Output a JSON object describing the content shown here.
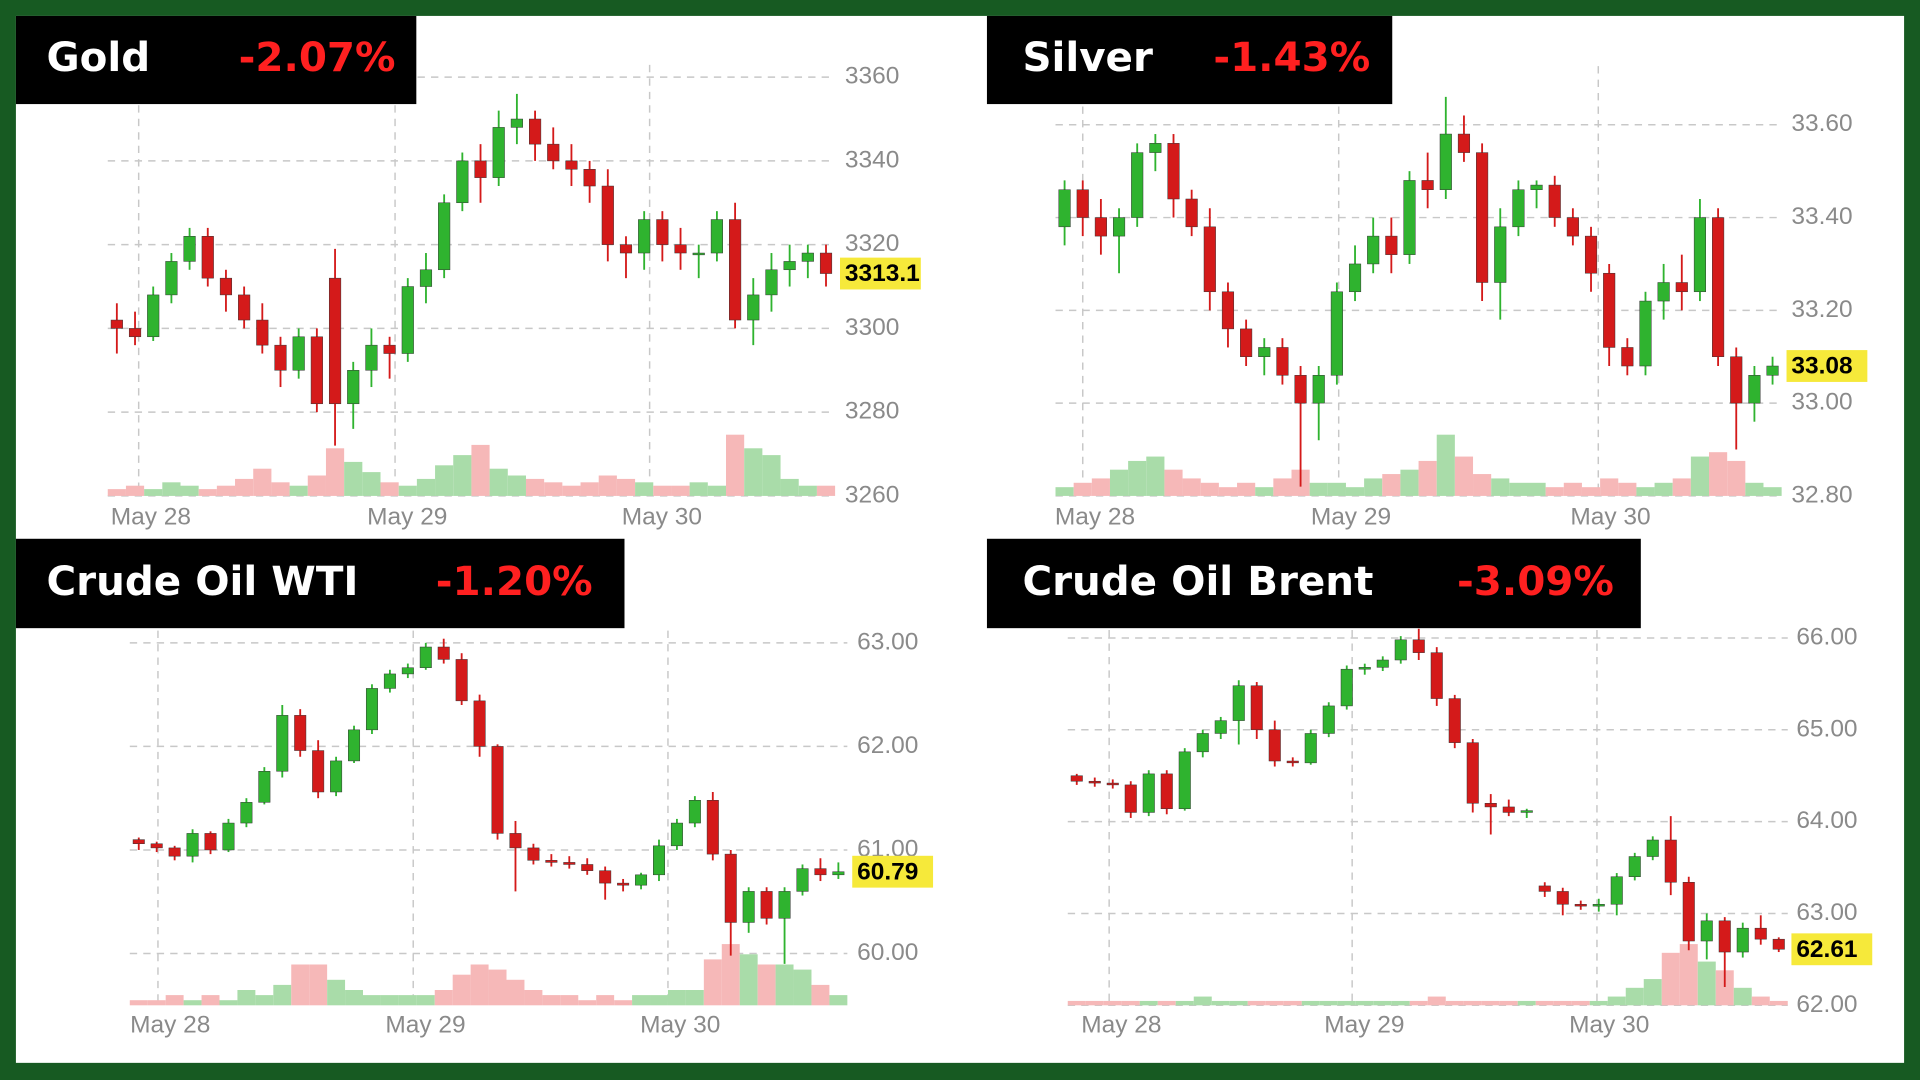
{
  "chart_data": [
    {
      "type": "candlestick",
      "title": "Gold",
      "change": "-2.07%",
      "xlim": [
        0,
        40
      ],
      "xticks": [
        {
          "value": 1.7,
          "label": "May 28"
        },
        {
          "value": 15.8,
          "label": "May 29"
        },
        {
          "value": 29.8,
          "label": "May 30"
        }
      ],
      "ylim": [
        3260,
        3360
      ],
      "yticks": [
        3260,
        3280,
        3300,
        3320,
        3340,
        3360
      ],
      "open": [
        3302,
        3300,
        3298,
        3308,
        3316,
        3322,
        3312,
        3308,
        3302,
        3296,
        3290,
        3298,
        3312,
        3282,
        3290,
        3296,
        3294,
        3310,
        3314,
        3330,
        3340,
        3336,
        3348,
        3350,
        3344,
        3340,
        3338,
        3334,
        3320,
        3318,
        3326,
        3320,
        3318,
        3318,
        3326,
        3302,
        3308,
        3314,
        3316,
        3318
      ],
      "high": [
        3306,
        3304,
        3310,
        3318,
        3324,
        3324,
        3314,
        3310,
        3306,
        3298,
        3300,
        3300,
        3319,
        3292,
        3300,
        3298,
        3312,
        3318,
        3332,
        3342,
        3344,
        3352,
        3356,
        3352,
        3348,
        3344,
        3340,
        3338,
        3322,
        3328,
        3328,
        3324,
        3320,
        3328,
        3330,
        3312,
        3318,
        3320,
        3320,
        3320
      ],
      "low": [
        3294,
        3296,
        3297,
        3306,
        3314,
        3310,
        3304,
        3300,
        3294,
        3286,
        3288,
        3280,
        3272,
        3276,
        3286,
        3288,
        3292,
        3306,
        3312,
        3328,
        3330,
        3334,
        3344,
        3340,
        3338,
        3334,
        3330,
        3316,
        3312,
        3314,
        3316,
        3314,
        3312,
        3316,
        3300,
        3296,
        3304,
        3310,
        3312,
        3310
      ],
      "close": [
        3300,
        3298,
        3308,
        3316,
        3322,
        3312,
        3308,
        3302,
        3296,
        3290,
        3298,
        3282,
        3282,
        3290,
        3296,
        3294,
        3310,
        3314,
        3330,
        3340,
        3336,
        3348,
        3350,
        3344,
        3340,
        3338,
        3334,
        3320,
        3318,
        3326,
        3320,
        3318,
        3318,
        3326,
        3302,
        3308,
        3314,
        3316,
        3318,
        3313.1
      ],
      "volume": [
        2,
        3,
        2,
        4,
        3,
        2,
        3,
        5,
        8,
        4,
        3,
        6,
        14,
        10,
        7,
        4,
        3,
        5,
        9,
        12,
        15,
        8,
        6,
        5,
        4,
        3,
        4,
        6,
        5,
        4,
        3,
        3,
        4,
        3,
        18,
        14,
        12,
        5,
        3,
        3
      ],
      "last": 3313.1,
      "up_color": "#2fb32f",
      "down_color": "#d41a1a",
      "volume_up_color": "#a9dca9",
      "volume_down_color": "#f6b8b8",
      "grid": true
    },
    {
      "type": "candlestick",
      "title": "Silver",
      "change": "-1.43%",
      "xlim": [
        0,
        40
      ],
      "xticks": [
        {
          "value": 1.5,
          "label": "May 28"
        },
        {
          "value": 15.6,
          "label": "May 29"
        },
        {
          "value": 29.9,
          "label": "May 30"
        }
      ],
      "ylim": [
        32.8,
        33.7
      ],
      "yticks": [
        {
          "value": 32.8,
          "label": "32.80"
        },
        {
          "value": 33.0,
          "label": "33.00"
        },
        {
          "value": 33.2,
          "label": "33.20"
        },
        {
          "value": 33.4,
          "label": "33.40"
        },
        {
          "value": 33.6,
          "label": "33.60"
        }
      ],
      "open": [
        33.38,
        33.46,
        33.4,
        33.36,
        33.4,
        33.54,
        33.56,
        33.44,
        33.38,
        33.24,
        33.16,
        33.1,
        33.12,
        33.06,
        33.0,
        33.06,
        33.24,
        33.3,
        33.36,
        33.32,
        33.48,
        33.46,
        33.58,
        33.54,
        33.26,
        33.38,
        33.46,
        33.47,
        33.4,
        33.36,
        33.28,
        33.12,
        33.08,
        33.22,
        33.26,
        33.24,
        33.4,
        33.1,
        33.0,
        33.06
      ],
      "high": [
        33.48,
        33.48,
        33.44,
        33.42,
        33.56,
        33.58,
        33.58,
        33.46,
        33.42,
        33.26,
        33.18,
        33.14,
        33.14,
        33.08,
        33.08,
        33.26,
        33.34,
        33.4,
        33.4,
        33.5,
        33.54,
        33.66,
        33.62,
        33.56,
        33.42,
        33.48,
        33.48,
        33.49,
        33.42,
        33.38,
        33.3,
        33.14,
        33.24,
        33.3,
        33.32,
        33.44,
        33.42,
        33.12,
        33.08,
        33.1
      ],
      "low": [
        33.34,
        33.36,
        33.32,
        33.28,
        33.38,
        33.5,
        33.4,
        33.36,
        33.2,
        33.12,
        33.08,
        33.06,
        33.04,
        32.82,
        32.92,
        33.04,
        33.22,
        33.28,
        33.28,
        33.3,
        33.42,
        33.44,
        33.52,
        33.22,
        33.18,
        33.36,
        33.42,
        33.38,
        33.34,
        33.24,
        33.08,
        33.06,
        33.06,
        33.18,
        33.2,
        33.22,
        33.08,
        32.9,
        32.96,
        33.04
      ],
      "close": [
        33.46,
        33.4,
        33.36,
        33.4,
        33.54,
        33.56,
        33.44,
        33.38,
        33.24,
        33.16,
        33.1,
        33.12,
        33.06,
        33.0,
        33.06,
        33.24,
        33.3,
        33.36,
        33.32,
        33.48,
        33.46,
        33.58,
        33.54,
        33.26,
        33.38,
        33.46,
        33.47,
        33.4,
        33.36,
        33.28,
        33.12,
        33.08,
        33.22,
        33.26,
        33.24,
        33.4,
        33.1,
        33.0,
        33.06,
        33.08
      ],
      "volume": [
        2,
        3,
        4,
        6,
        8,
        9,
        6,
        4,
        3,
        2,
        3,
        2,
        4,
        6,
        3,
        3,
        2,
        4,
        5,
        6,
        8,
        14,
        9,
        5,
        4,
        3,
        3,
        2,
        3,
        2,
        4,
        3,
        2,
        3,
        4,
        9,
        10,
        8,
        3,
        2
      ],
      "last": 33.08,
      "up_color": "#2fb32f",
      "down_color": "#d41a1a",
      "volume_up_color": "#a9dca9",
      "volume_down_color": "#f6b8b8",
      "grid": true
    },
    {
      "type": "candlestick",
      "title": "Crude Oil WTI",
      "change": "-1.20%",
      "xlim": [
        0,
        40
      ],
      "xticks": [
        {
          "value": 1.57,
          "label": "May 28"
        },
        {
          "value": 15.8,
          "label": "May 29"
        },
        {
          "value": 30.0,
          "label": "May 30"
        }
      ],
      "ylim": [
        59.5,
        63
      ],
      "yticks": [
        {
          "value": 60,
          "label": "60.00"
        },
        {
          "value": 61,
          "label": "61.00"
        },
        {
          "value": 62,
          "label": "62.00"
        },
        {
          "value": 63,
          "label": "63.00"
        }
      ],
      "open": [
        61.1,
        61.06,
        61.02,
        60.94,
        61.16,
        61.0,
        61.26,
        61.46,
        61.76,
        62.3,
        61.96,
        61.56,
        61.86,
        62.16,
        62.56,
        62.7,
        62.76,
        62.96,
        62.84,
        62.44,
        62.0,
        61.16,
        61.02,
        60.9,
        60.88,
        60.86,
        60.8,
        60.68,
        60.66,
        60.76,
        61.04,
        61.26,
        61.48,
        60.96,
        60.3,
        60.6,
        60.34,
        60.6,
        60.82,
        60.76
      ],
      "high": [
        61.12,
        61.08,
        61.04,
        61.2,
        61.18,
        61.3,
        61.5,
        61.8,
        62.4,
        62.36,
        62.06,
        61.9,
        62.2,
        62.6,
        62.74,
        62.8,
        63.0,
        63.04,
        62.9,
        62.5,
        62.02,
        61.28,
        61.06,
        60.96,
        60.94,
        60.92,
        60.84,
        60.72,
        60.78,
        61.1,
        61.3,
        61.52,
        61.56,
        61.0,
        60.64,
        60.64,
        60.64,
        60.86,
        60.92,
        60.88
      ],
      "low": [
        61.0,
        60.98,
        60.9,
        60.88,
        60.96,
        60.98,
        61.22,
        61.44,
        61.7,
        61.9,
        61.5,
        61.52,
        61.84,
        62.12,
        62.52,
        62.66,
        62.74,
        62.8,
        62.4,
        61.9,
        61.1,
        60.6,
        60.86,
        60.84,
        60.82,
        60.76,
        60.52,
        60.6,
        60.62,
        60.7,
        61.0,
        61.22,
        60.9,
        59.98,
        60.2,
        60.28,
        59.9,
        60.56,
        60.7,
        60.72
      ],
      "close": [
        61.06,
        61.02,
        60.94,
        61.16,
        61.0,
        61.26,
        61.46,
        61.76,
        62.3,
        61.96,
        61.56,
        61.86,
        62.16,
        62.56,
        62.7,
        62.76,
        62.96,
        62.84,
        62.44,
        62.0,
        61.16,
        61.02,
        60.9,
        60.88,
        60.86,
        60.8,
        60.68,
        60.66,
        60.76,
        61.04,
        61.26,
        61.48,
        60.96,
        60.3,
        60.6,
        60.34,
        60.6,
        60.82,
        60.76,
        60.79
      ],
      "volume": [
        1,
        1,
        2,
        1,
        2,
        1,
        3,
        2,
        4,
        8,
        8,
        5,
        3,
        2,
        2,
        2,
        2,
        3,
        6,
        8,
        7,
        5,
        3,
        2,
        2,
        1,
        2,
        1,
        2,
        2,
        3,
        3,
        9,
        12,
        10,
        8,
        8,
        7,
        4,
        2
      ],
      "last": 60.79,
      "up_color": "#2fb32f",
      "down_color": "#d41a1a",
      "volume_up_color": "#a9dca9",
      "volume_down_color": "#f6b8b8",
      "grid": true
    },
    {
      "type": "candlestick",
      "title": "Crude Oil Brent",
      "change": "-3.09%",
      "xlim": [
        0,
        40
      ],
      "xticks": [
        {
          "value": 2.3,
          "label": "May 28"
        },
        {
          "value": 15.8,
          "label": "May 29"
        },
        {
          "value": 29.4,
          "label": "May 30"
        }
      ],
      "ylim": [
        62,
        66.1
      ],
      "yticks": [
        {
          "value": 62,
          "label": "62.00"
        },
        {
          "value": 63,
          "label": "63.00"
        },
        {
          "value": 64,
          "label": "64.00"
        },
        {
          "value": 65,
          "label": "65.00"
        },
        {
          "value": 66,
          "label": "66.00"
        }
      ],
      "open": [
        64.5,
        64.44,
        64.42,
        64.4,
        64.1,
        64.52,
        64.14,
        64.76,
        64.96,
        65.1,
        65.48,
        65.0,
        64.66,
        64.64,
        64.96,
        65.26,
        65.66,
        65.68,
        65.76,
        65.98,
        65.84,
        65.34,
        64.86,
        64.2,
        64.16,
        64.1,
        63.3,
        63.24,
        63.1,
        63.08,
        63.1,
        63.4,
        63.62,
        63.8,
        63.34,
        62.7,
        62.92,
        62.58,
        62.84,
        62.72
      ],
      "high": [
        64.52,
        64.48,
        64.46,
        64.44,
        64.56,
        64.56,
        64.8,
        65.0,
        65.14,
        65.54,
        65.52,
        65.1,
        64.7,
        65.0,
        65.3,
        65.7,
        65.72,
        65.8,
        66.02,
        66.1,
        65.9,
        65.38,
        64.9,
        64.3,
        64.24,
        64.14,
        63.34,
        63.28,
        63.14,
        63.16,
        63.44,
        63.66,
        63.84,
        64.06,
        63.4,
        63.0,
        62.96,
        62.9,
        62.98,
        62.74
      ],
      "low": [
        64.4,
        64.38,
        64.36,
        64.04,
        64.06,
        64.08,
        64.12,
        64.7,
        64.9,
        64.84,
        64.9,
        64.6,
        64.6,
        64.62,
        64.92,
        65.22,
        65.6,
        65.64,
        65.72,
        65.76,
        65.26,
        64.8,
        64.1,
        63.86,
        64.06,
        64.04,
        63.18,
        62.98,
        63.04,
        63.02,
        62.98,
        63.36,
        63.58,
        63.2,
        62.6,
        62.5,
        62.2,
        62.52,
        62.66,
        62.58
      ],
      "close": [
        64.44,
        64.42,
        64.4,
        64.1,
        64.52,
        64.14,
        64.76,
        64.96,
        65.1,
        65.48,
        65.0,
        64.66,
        64.64,
        64.96,
        65.26,
        65.66,
        65.68,
        65.76,
        65.98,
        65.84,
        65.34,
        64.86,
        64.2,
        64.16,
        64.1,
        64.12,
        63.24,
        63.1,
        63.08,
        63.1,
        63.4,
        63.62,
        63.8,
        63.34,
        62.7,
        62.92,
        62.58,
        62.84,
        62.72,
        62.61
      ],
      "volume": [
        1,
        1,
        1,
        1,
        1,
        1,
        1,
        2,
        1,
        1,
        1,
        1,
        1,
        1,
        1,
        1,
        1,
        1,
        1,
        1,
        2,
        1,
        1,
        1,
        1,
        1,
        1,
        1,
        1,
        1,
        2,
        4,
        6,
        12,
        14,
        10,
        8,
        4,
        2,
        1
      ],
      "last": 62.61,
      "up_color": "#2fb32f",
      "down_color": "#d41a1a",
      "volume_up_color": "#a9dca9",
      "volume_down_color": "#f6b8b8",
      "grid": true
    }
  ]
}
